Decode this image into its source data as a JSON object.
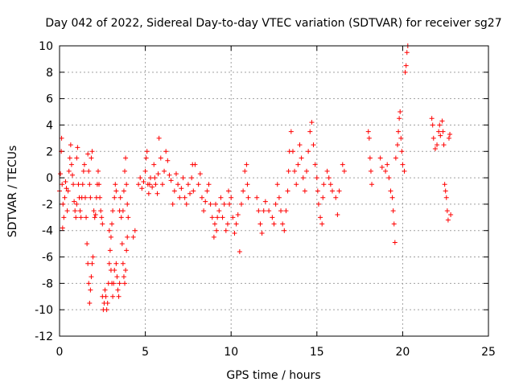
{
  "chart_data": {
    "type": "scatter",
    "title": "Day 042 of 2022, Sidereal Day-to-day VTEC variation (SDTVAR) for receiver sg27",
    "xlabel": "GPS time / hours",
    "ylabel": "SDTVAR / TECUs",
    "xlim": [
      0,
      25
    ],
    "ylim": [
      -12,
      10
    ],
    "xticks": [
      0,
      5,
      10,
      15,
      20,
      25
    ],
    "xtick_labels": [
      "0",
      "5",
      "10",
      "15",
      "20",
      "25"
    ],
    "yticks": [
      -12,
      -10,
      -8,
      -6,
      -4,
      -2,
      0,
      2,
      4,
      6,
      8,
      10
    ],
    "ytick_labels": [
      "-12",
      "-10",
      "-8",
      "-6",
      "-4",
      "-2",
      "0",
      "2",
      "4",
      "6",
      "8",
      "10"
    ],
    "grid": true,
    "marker": "+",
    "marker_color": "#ff0000",
    "series": [
      {
        "name": "SDTVAR",
        "points": [
          [
            0.0,
            -1.0
          ],
          [
            0.05,
            0.3
          ],
          [
            0.1,
            2.0
          ],
          [
            0.12,
            3.0
          ],
          [
            0.15,
            -0.5
          ],
          [
            0.18,
            -3.8
          ],
          [
            0.2,
            -2.0
          ],
          [
            0.25,
            -3.0
          ],
          [
            0.3,
            -1.5
          ],
          [
            0.35,
            -0.3
          ],
          [
            0.4,
            -0.8
          ],
          [
            0.45,
            -2.5
          ],
          [
            0.5,
            -1.0
          ],
          [
            0.55,
            0.5
          ],
          [
            0.6,
            1.5
          ],
          [
            0.65,
            2.5
          ],
          [
            0.7,
            1.0
          ],
          [
            0.75,
            0.2
          ],
          [
            0.8,
            -0.5
          ],
          [
            0.85,
            -1.8
          ],
          [
            0.9,
            -2.5
          ],
          [
            0.95,
            -3.0
          ],
          [
            1.0,
            -2.0
          ],
          [
            1.0,
            1.5
          ],
          [
            1.05,
            2.3
          ],
          [
            1.1,
            -0.5
          ],
          [
            1.15,
            -1.5
          ],
          [
            1.2,
            -2.5
          ],
          [
            1.25,
            -3.0
          ],
          [
            1.3,
            -1.5
          ],
          [
            1.35,
            -0.5
          ],
          [
            1.4,
            0.5
          ],
          [
            1.45,
            1.0
          ],
          [
            1.5,
            -1.5
          ],
          [
            1.55,
            -3.0
          ],
          [
            1.6,
            -5.0
          ],
          [
            1.65,
            -6.5
          ],
          [
            1.7,
            -8.0
          ],
          [
            1.75,
            -9.5
          ],
          [
            1.8,
            -8.5
          ],
          [
            1.85,
            -7.5
          ],
          [
            1.9,
            -6.5
          ],
          [
            1.95,
            -6.0
          ],
          [
            1.65,
            1.8
          ],
          [
            1.7,
            0.5
          ],
          [
            1.75,
            -0.5
          ],
          [
            1.8,
            -1.5
          ],
          [
            1.85,
            1.5
          ],
          [
            1.9,
            2.0
          ],
          [
            2.0,
            -2.5
          ],
          [
            2.05,
            -3.0
          ],
          [
            2.1,
            -2.8
          ],
          [
            2.15,
            -1.5
          ],
          [
            2.2,
            -0.5
          ],
          [
            2.25,
            0.5
          ],
          [
            2.3,
            -0.5
          ],
          [
            2.35,
            -1.5
          ],
          [
            2.4,
            -2.5
          ],
          [
            2.45,
            -3.0
          ],
          [
            2.5,
            -3.5
          ],
          [
            2.5,
            -9.0
          ],
          [
            2.55,
            -10.0
          ],
          [
            2.6,
            -9.5
          ],
          [
            2.65,
            -8.5
          ],
          [
            2.7,
            -9.0
          ],
          [
            2.75,
            -10.0
          ],
          [
            2.8,
            -9.5
          ],
          [
            2.85,
            -8.0
          ],
          [
            2.9,
            -6.5
          ],
          [
            2.9,
            -4.0
          ],
          [
            2.95,
            -5.5
          ],
          [
            3.0,
            -7.0
          ],
          [
            3.0,
            -4.5
          ],
          [
            3.05,
            -3.5
          ],
          [
            3.1,
            -2.5
          ],
          [
            3.05,
            -8.0
          ],
          [
            3.1,
            -9.0
          ],
          [
            3.15,
            -8.0
          ],
          [
            3.2,
            -7.0
          ],
          [
            3.2,
            -1.5
          ],
          [
            3.25,
            -0.5
          ],
          [
            3.3,
            -1.0
          ],
          [
            3.3,
            -6.5
          ],
          [
            3.35,
            -7.5
          ],
          [
            3.4,
            -8.5
          ],
          [
            3.45,
            -9.0
          ],
          [
            3.5,
            -8.0
          ],
          [
            3.5,
            -2.5
          ],
          [
            3.55,
            -1.5
          ],
          [
            3.6,
            -3.0
          ],
          [
            3.65,
            -5.0
          ],
          [
            3.7,
            -6.5
          ],
          [
            3.75,
            -7.5
          ],
          [
            3.8,
            -8.0
          ],
          [
            3.85,
            -7.0
          ],
          [
            3.9,
            -5.5
          ],
          [
            3.95,
            -4.5
          ],
          [
            3.7,
            -2.5
          ],
          [
            3.75,
            -1.0
          ],
          [
            3.8,
            0.5
          ],
          [
            3.85,
            1.5
          ],
          [
            3.9,
            -0.5
          ],
          [
            3.95,
            -2.0
          ],
          [
            4.0,
            -3.0
          ],
          [
            4.3,
            -4.5
          ],
          [
            4.4,
            -4.0
          ],
          [
            4.6,
            -0.5
          ],
          [
            4.7,
            0.0
          ],
          [
            4.8,
            -0.8
          ],
          [
            4.9,
            -0.3
          ],
          [
            5.0,
            0.5
          ],
          [
            5.05,
            1.5
          ],
          [
            5.1,
            2.0
          ],
          [
            5.15,
            -0.5
          ],
          [
            5.2,
            -1.2
          ],
          [
            5.25,
            -0.5
          ],
          [
            5.3,
            0.0
          ],
          [
            5.4,
            -0.7
          ],
          [
            5.5,
            1.0
          ],
          [
            5.55,
            0.0
          ],
          [
            5.6,
            -0.5
          ],
          [
            5.7,
            -1.2
          ],
          [
            5.75,
            0.3
          ],
          [
            5.8,
            3.0
          ],
          [
            5.9,
            1.5
          ],
          [
            6.0,
            -0.5
          ],
          [
            6.1,
            0.5
          ],
          [
            6.2,
            2.0
          ],
          [
            6.3,
            1.3
          ],
          [
            6.4,
            0.2
          ],
          [
            6.5,
            -0.2
          ],
          [
            6.6,
            -2.0
          ],
          [
            6.7,
            -1.0
          ],
          [
            6.8,
            0.3
          ],
          [
            6.9,
            -0.5
          ],
          [
            7.0,
            -1.5
          ],
          [
            7.1,
            -0.8
          ],
          [
            7.2,
            0.0
          ],
          [
            7.3,
            -1.5
          ],
          [
            7.4,
            -2.0
          ],
          [
            7.5,
            -0.5
          ],
          [
            7.6,
            -1.2
          ],
          [
            7.7,
            0.0
          ],
          [
            7.75,
            1.0
          ],
          [
            7.8,
            -1.0
          ],
          [
            7.9,
            1.0
          ],
          [
            8.1,
            -0.5
          ],
          [
            8.2,
            0.3
          ],
          [
            8.3,
            -1.5
          ],
          [
            8.4,
            -2.5
          ],
          [
            8.5,
            -1.8
          ],
          [
            8.6,
            -1.0
          ],
          [
            8.7,
            -0.5
          ],
          [
            8.8,
            -2.0
          ],
          [
            8.9,
            -3.0
          ],
          [
            9.0,
            -4.5
          ],
          [
            9.05,
            -3.5
          ],
          [
            9.1,
            -2.0
          ],
          [
            9.15,
            -4.0
          ],
          [
            9.2,
            -3.0
          ],
          [
            9.3,
            -2.5
          ],
          [
            9.4,
            -1.5
          ],
          [
            9.5,
            -3.0
          ],
          [
            9.6,
            -2.0
          ],
          [
            9.7,
            -4.0
          ],
          [
            9.8,
            -3.5
          ],
          [
            9.85,
            -1.0
          ],
          [
            9.9,
            -2.0
          ],
          [
            10.0,
            -1.5
          ],
          [
            10.1,
            -3.0
          ],
          [
            10.2,
            -4.2
          ],
          [
            10.3,
            -3.5
          ],
          [
            10.4,
            -2.8
          ],
          [
            10.5,
            -5.6
          ],
          [
            10.6,
            -2.0
          ],
          [
            10.7,
            -1.0
          ],
          [
            10.8,
            0.5
          ],
          [
            10.9,
            1.0
          ],
          [
            10.95,
            -0.5
          ],
          [
            11.0,
            -1.5
          ],
          [
            11.5,
            -1.5
          ],
          [
            11.6,
            -2.5
          ],
          [
            11.7,
            -3.5
          ],
          [
            11.8,
            -4.2
          ],
          [
            11.9,
            -2.5
          ],
          [
            12.0,
            -1.8
          ],
          [
            12.2,
            -2.5
          ],
          [
            12.4,
            -3.0
          ],
          [
            12.5,
            -3.5
          ],
          [
            12.6,
            -2.0
          ],
          [
            12.7,
            -0.5
          ],
          [
            12.8,
            -1.5
          ],
          [
            12.9,
            -2.5
          ],
          [
            13.0,
            -3.5
          ],
          [
            13.1,
            -4.0
          ],
          [
            13.2,
            -2.5
          ],
          [
            13.3,
            -1.0
          ],
          [
            13.35,
            0.5
          ],
          [
            13.4,
            2.0
          ],
          [
            13.5,
            3.5
          ],
          [
            13.6,
            2.0
          ],
          [
            13.7,
            0.5
          ],
          [
            13.8,
            -0.5
          ],
          [
            13.9,
            1.0
          ],
          [
            14.0,
            2.5
          ],
          [
            14.1,
            1.5
          ],
          [
            14.2,
            0.0
          ],
          [
            14.3,
            -1.0
          ],
          [
            14.4,
            0.5
          ],
          [
            14.5,
            2.0
          ],
          [
            14.6,
            3.5
          ],
          [
            14.7,
            4.2
          ],
          [
            14.8,
            2.5
          ],
          [
            14.9,
            1.0
          ],
          [
            15.0,
            0.0
          ],
          [
            15.05,
            -1.0
          ],
          [
            15.1,
            -2.0
          ],
          [
            15.2,
            -3.0
          ],
          [
            15.3,
            -3.5
          ],
          [
            15.35,
            -1.5
          ],
          [
            15.4,
            -0.5
          ],
          [
            15.6,
            0.5
          ],
          [
            15.7,
            0.0
          ],
          [
            15.8,
            -0.5
          ],
          [
            15.9,
            -1.0
          ],
          [
            16.1,
            -1.5
          ],
          [
            16.2,
            -2.8
          ],
          [
            16.3,
            -1.0
          ],
          [
            16.5,
            1.0
          ],
          [
            16.6,
            0.5
          ],
          [
            18.0,
            3.5
          ],
          [
            18.05,
            3.0
          ],
          [
            18.1,
            1.5
          ],
          [
            18.15,
            0.5
          ],
          [
            18.2,
            -0.5
          ],
          [
            18.7,
            1.5
          ],
          [
            18.8,
            0.8
          ],
          [
            19.0,
            0.5
          ],
          [
            19.1,
            1.0
          ],
          [
            19.2,
            0.0
          ],
          [
            19.3,
            -1.0
          ],
          [
            19.4,
            -1.5
          ],
          [
            19.45,
            -2.5
          ],
          [
            19.5,
            -3.5
          ],
          [
            19.55,
            -4.9
          ],
          [
            19.6,
            1.5
          ],
          [
            19.7,
            2.5
          ],
          [
            19.75,
            3.5
          ],
          [
            19.8,
            4.5
          ],
          [
            19.85,
            5.0
          ],
          [
            19.9,
            3.0
          ],
          [
            19.95,
            2.0
          ],
          [
            20.0,
            1.0
          ],
          [
            20.1,
            0.5
          ],
          [
            20.15,
            8.0
          ],
          [
            20.2,
            8.5
          ],
          [
            20.25,
            9.5
          ],
          [
            20.3,
            10.0
          ],
          [
            21.7,
            4.5
          ],
          [
            21.75,
            4.0
          ],
          [
            21.8,
            3.0
          ],
          [
            21.9,
            2.2
          ],
          [
            22.0,
            2.5
          ],
          [
            22.1,
            3.5
          ],
          [
            22.15,
            4.0
          ],
          [
            22.2,
            3.2
          ],
          [
            22.3,
            4.3
          ],
          [
            22.35,
            3.5
          ],
          [
            22.4,
            2.5
          ],
          [
            22.45,
            -0.5
          ],
          [
            22.5,
            -1.0
          ],
          [
            22.55,
            -1.5
          ],
          [
            22.6,
            -2.5
          ],
          [
            22.65,
            -3.2
          ],
          [
            22.7,
            3.0
          ],
          [
            22.75,
            3.3
          ],
          [
            22.8,
            -2.8
          ]
        ]
      }
    ]
  }
}
